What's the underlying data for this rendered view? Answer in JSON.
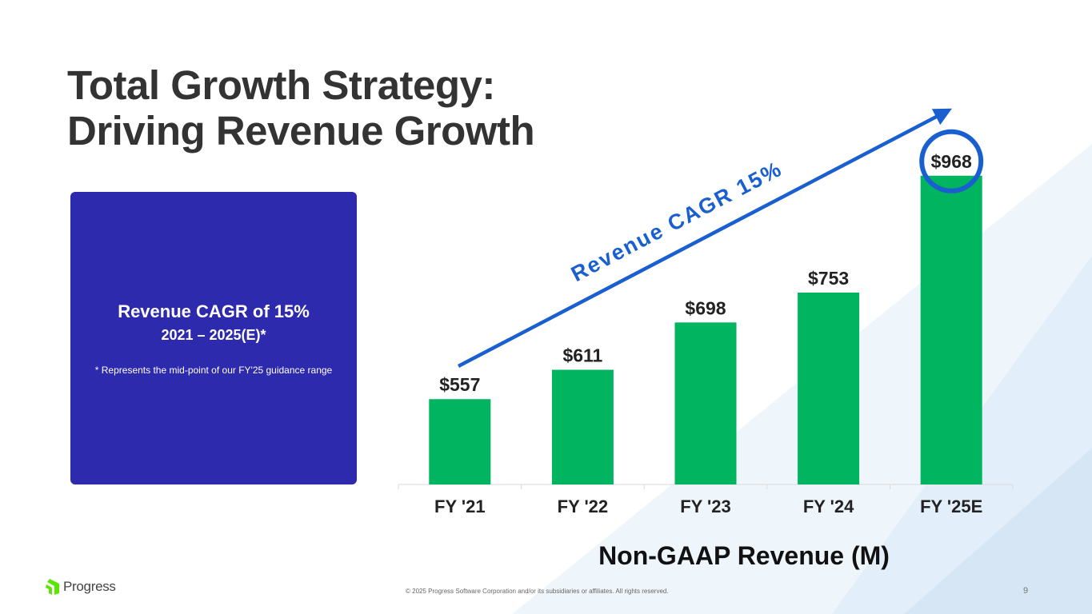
{
  "slide": {
    "title_line1": "Total Growth Strategy:",
    "title_line2": "Driving Revenue Growth",
    "box": {
      "heading": "Revenue CAGR of 15%",
      "subheading": "2021 – 2025(E)*",
      "note": "* Represents the mid-point of our FY'25 guidance range"
    },
    "footer": "© 2025 Progress Software Corporation and/or its subsidiaries or affiliates. All rights reserved.",
    "page_number": "9",
    "logo_text": "Progress",
    "colors": {
      "bar": "#00b460",
      "box": "#2d2aae",
      "arrow": "#1a5fd0",
      "title": "#333333"
    }
  },
  "chart_data": {
    "type": "bar",
    "title": "Non-GAAP Revenue (M)",
    "categories": [
      "FY '21",
      "FY '22",
      "FY '23",
      "FY '24",
      "FY '25E"
    ],
    "values": [
      557,
      611,
      698,
      753,
      968
    ],
    "labels": [
      "$557",
      "$611",
      "$698",
      "$753",
      "$968"
    ],
    "ylim": [
      400,
      1000
    ],
    "annotation": "Revenue CAGR 15%",
    "highlight": "FY '25E",
    "grid": false
  }
}
